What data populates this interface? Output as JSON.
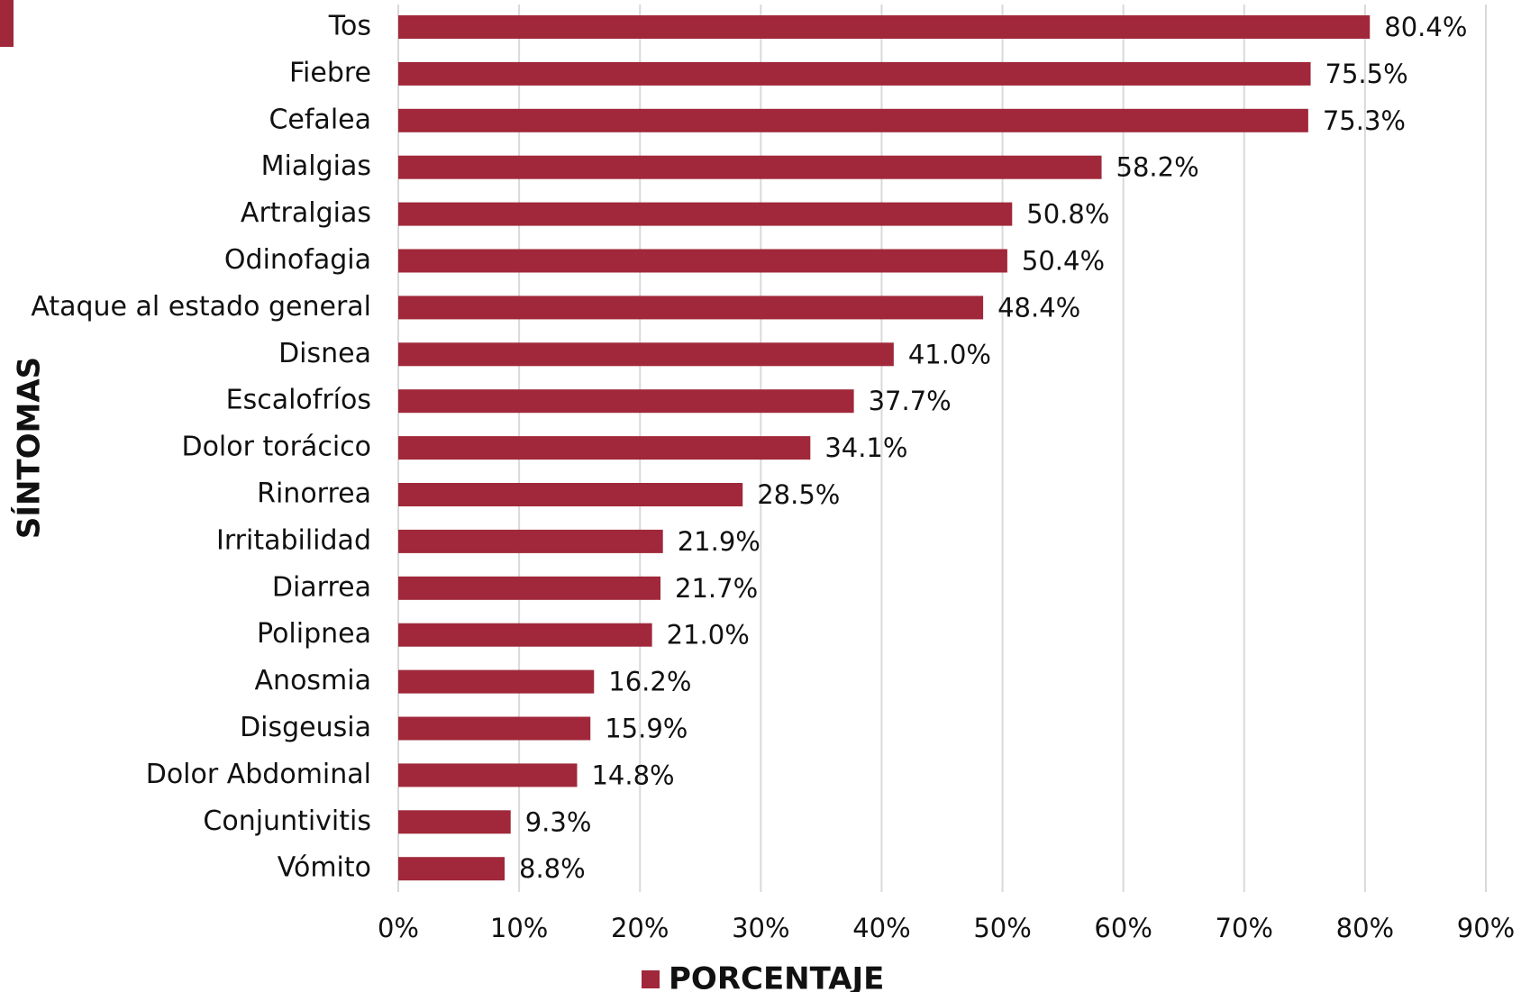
{
  "chart_data": {
    "type": "barh",
    "categories": [
      "Tos",
      "Fiebre",
      "Cefalea",
      "Mialgias",
      "Artralgias",
      "Odinofagia",
      "Ataque al estado general",
      "Disnea",
      "Escalofríos",
      "Dolor torácico",
      "Rinorrea",
      "Irritabilidad",
      "Diarrea",
      "Polipnea",
      "Anosmia",
      "Disgeusia",
      "Dolor Abdominal",
      "Conjuntivitis",
      "Vómito"
    ],
    "series": [
      {
        "name": "PORCENTAJE",
        "color": "#a0283a",
        "values": [
          80.4,
          75.5,
          75.3,
          58.2,
          50.8,
          50.4,
          48.4,
          41.0,
          37.7,
          34.1,
          28.5,
          21.9,
          21.7,
          21.0,
          16.2,
          15.9,
          14.8,
          9.3,
          8.8
        ],
        "value_labels": [
          "80.4%",
          "75.5%",
          "75.3%",
          "58.2%",
          "50.8%",
          "50.4%",
          "48.4%",
          "41.0%",
          "37.7%",
          "34.1%",
          "28.5%",
          "21.9%",
          "21.7%",
          "21.0%",
          "16.2%",
          "15.9%",
          "14.8%",
          "9.3%",
          "8.8%"
        ]
      }
    ],
    "y_label": "SÍNTOMAS",
    "xlim": [
      0,
      90
    ],
    "xticks": [
      {
        "value": 0,
        "label": "0%"
      },
      {
        "value": 10,
        "label": "10%"
      },
      {
        "value": 20,
        "label": "20%"
      },
      {
        "value": 30,
        "label": "30%"
      },
      {
        "value": 40,
        "label": "40%"
      },
      {
        "value": 50,
        "label": "50%"
      },
      {
        "value": 60,
        "label": "60%"
      },
      {
        "value": 70,
        "label": "70%"
      },
      {
        "value": 80,
        "label": "80%"
      },
      {
        "value": 90,
        "label": "90%"
      }
    ],
    "grid": true
  }
}
